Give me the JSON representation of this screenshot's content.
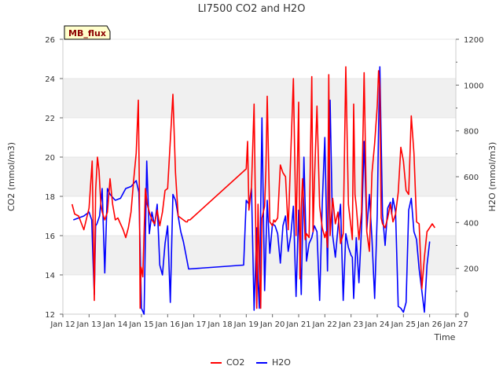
{
  "chart_data": {
    "type": "line",
    "title": "LI7500 CO2 and H2O",
    "xlabel": "Time",
    "ylabel_left": "CO2 (mmol/m3)",
    "ylabel_right": "H2O (mmol/m3)",
    "badge": "MB_flux",
    "x_range": [
      "2023-01-12",
      "2023-01-27"
    ],
    "ylim_left": [
      12,
      26
    ],
    "ylim_right": [
      0,
      1200
    ],
    "x_tick_labels": [
      "Jan 12",
      "Jan 13",
      "Jan 14",
      "Jan 15",
      "Jan 16",
      "Jan 17",
      "Jan 18",
      "Jan 19",
      "Jan 20",
      "Jan 21",
      "Jan 22",
      "Jan 23",
      "Jan 24",
      "Jan 25",
      "Jan 26",
      "Jan 27"
    ],
    "y_left_ticks": [
      12,
      14,
      16,
      18,
      20,
      22,
      24,
      26
    ],
    "y_right_ticks": [
      0,
      200,
      400,
      600,
      800,
      1000,
      1200
    ],
    "grid": "horizontal bands",
    "legend": "bottom-center",
    "colors": {
      "CO2": "#ff0000",
      "H2O": "#0000ff",
      "band": "#f0f0f0",
      "badge_fill": "#ffffcc",
      "badge_text": "#8b0000"
    },
    "series": [
      {
        "name": "CO2",
        "axis": "left",
        "x": [
          12.35,
          12.45,
          12.6,
          12.8,
          13.0,
          13.12,
          13.2,
          13.25,
          13.32,
          13.38,
          13.45,
          13.5,
          13.6,
          13.7,
          13.8,
          13.9,
          14.0,
          14.1,
          14.2,
          14.3,
          14.4,
          14.5,
          14.6,
          14.7,
          14.8,
          14.88,
          14.92,
          14.95,
          14.98,
          15.0,
          15.05,
          15.15,
          15.22,
          15.3,
          15.4,
          15.5,
          15.6,
          15.7,
          15.8,
          15.9,
          16.0,
          16.2,
          16.3,
          16.4,
          16.5,
          16.6,
          16.7,
          16.75,
          16.78,
          16.8,
          16.85,
          19.0,
          19.05,
          19.1,
          19.2,
          19.3,
          19.4,
          19.45,
          19.5,
          19.55,
          19.6,
          19.65,
          19.7,
          19.75,
          19.8,
          19.9,
          20.0,
          20.05,
          20.1,
          20.2,
          20.3,
          20.4,
          20.5,
          20.6,
          20.7,
          20.8,
          20.9,
          21.0,
          21.05,
          21.1,
          21.15,
          21.2,
          21.25,
          21.3,
          21.4,
          21.5,
          21.55,
          21.6,
          21.7,
          21.8,
          21.9,
          22.0,
          22.05,
          22.1,
          22.15,
          22.2,
          22.3,
          22.4,
          22.5,
          22.6,
          22.7,
          22.8,
          22.9,
          23.0,
          23.05,
          23.1,
          23.15,
          23.2,
          23.3,
          23.4,
          23.5,
          23.6,
          23.7,
          23.8,
          23.9,
          24.0,
          24.05,
          24.1,
          24.15,
          24.2,
          24.3,
          24.4,
          24.5,
          24.6,
          24.7,
          24.8,
          24.9,
          25.0,
          25.1,
          25.2,
          25.3,
          25.4,
          25.5,
          25.6,
          25.7,
          25.8,
          25.9,
          26.0,
          26.1,
          26.2
        ],
        "values": [
          17.6,
          17.1,
          17.0,
          16.3,
          17.4,
          19.8,
          12.7,
          18.3,
          20.0,
          19.3,
          17.6,
          17.2,
          16.8,
          17.2,
          18.9,
          17.6,
          16.8,
          16.9,
          16.6,
          16.3,
          15.9,
          16.4,
          17.2,
          18.8,
          20.2,
          22.9,
          18.5,
          12.3,
          14.4,
          14.3,
          13.9,
          18.4,
          17.6,
          17.2,
          16.8,
          16.6,
          17.3,
          16.5,
          17.2,
          18.3,
          18.4,
          23.2,
          19.2,
          17.0,
          16.9,
          16.8,
          16.7,
          16.7,
          16.8,
          16.8,
          16.8,
          19.4,
          20.8,
          17.3,
          18.5,
          22.7,
          12.3,
          17.6,
          14.4,
          12.3,
          16.9,
          17.2,
          17.5,
          19.3,
          23.1,
          16.7,
          16.5,
          16.8,
          16.7,
          16.9,
          19.6,
          19.2,
          19.0,
          16.3,
          20.2,
          24.0,
          16.0,
          22.8,
          13.8,
          17.4,
          18.9,
          17.3,
          15.8,
          16.1,
          15.9,
          24.1,
          16.2,
          18.7,
          22.6,
          17.5,
          16.4,
          15.9,
          16.2,
          15.4,
          24.2,
          16.0,
          17.9,
          16.6,
          17.2,
          15.6,
          16.1,
          24.6,
          17.6,
          16.4,
          15.8,
          22.7,
          18.1,
          17.5,
          15.8,
          17.2,
          24.3,
          16.2,
          15.2,
          19.2,
          20.7,
          22.6,
          24.4,
          23.5,
          16.9,
          16.6,
          16.4,
          16.9,
          17.6,
          16.7,
          17.1,
          18.2,
          20.5,
          19.8,
          18.3,
          18.1,
          22.1,
          20.2,
          16.7,
          16.6,
          13.3,
          14.9,
          16.2,
          16.4,
          16.6,
          16.4
        ]
      },
      {
        "name": "H2O",
        "axis": "left",
        "x": [
          12.4,
          12.6,
          12.8,
          13.0,
          13.1,
          13.15,
          13.2,
          13.25,
          13.3,
          13.4,
          13.5,
          13.6,
          13.7,
          13.8,
          14.0,
          14.2,
          14.4,
          14.6,
          14.8,
          14.9,
          15.0,
          15.1,
          15.2,
          15.3,
          15.4,
          15.5,
          15.6,
          15.7,
          15.8,
          15.9,
          16.0,
          16.1,
          16.2,
          16.3,
          16.4,
          16.45,
          16.5,
          16.6,
          16.7,
          16.8,
          18.9,
          19.0,
          19.1,
          19.2,
          19.3,
          19.4,
          19.45,
          19.5,
          19.6,
          19.7,
          19.8,
          19.9,
          20.0,
          20.1,
          20.2,
          20.3,
          20.4,
          20.5,
          20.6,
          20.7,
          20.8,
          20.9,
          21.0,
          21.1,
          21.2,
          21.3,
          21.4,
          21.5,
          21.6,
          21.7,
          21.8,
          21.9,
          22.0,
          22.1,
          22.2,
          22.3,
          22.4,
          22.5,
          22.6,
          22.7,
          22.8,
          22.9,
          23.0,
          23.05,
          23.1,
          23.2,
          23.3,
          23.4,
          23.5,
          23.6,
          23.7,
          23.8,
          23.9,
          24.0,
          24.05,
          24.1,
          24.2,
          24.3,
          24.4,
          24.5,
          24.55,
          24.6,
          24.7,
          24.8,
          24.9,
          25.0,
          25.1,
          25.2,
          25.3,
          25.4,
          25.5,
          25.6,
          25.7,
          25.8,
          25.9,
          26.0
        ],
        "values": [
          16.8,
          16.9,
          17.0,
          17.2,
          16.8,
          14.8,
          13.0,
          16.5,
          16.6,
          17.0,
          18.4,
          14.1,
          18.4,
          18.1,
          17.8,
          17.9,
          18.4,
          18.5,
          18.8,
          18.2,
          12.3,
          12.0,
          19.8,
          16.1,
          17.2,
          16.5,
          17.6,
          14.5,
          14.0,
          15.6,
          16.5,
          12.6,
          18.1,
          17.8,
          17.0,
          16.6,
          16.2,
          15.7,
          15.0,
          14.3,
          14.5,
          17.8,
          17.6,
          18.4,
          12.2,
          16.4,
          13.7,
          12.3,
          22.0,
          13.2,
          17.8,
          15.1,
          16.6,
          16.5,
          16.1,
          14.6,
          16.5,
          17.0,
          15.2,
          16.0,
          17.5,
          12.9,
          17.3,
          13.0,
          20.0,
          14.7,
          15.6,
          15.9,
          16.5,
          16.2,
          12.7,
          17.6,
          21.0,
          14.2,
          22.9,
          16.0,
          14.9,
          16.4,
          17.6,
          12.7,
          16.1,
          15.4,
          15.0,
          14.9,
          12.8,
          15.9,
          13.6,
          16.4,
          20.8,
          16.3,
          18.1,
          15.8,
          12.8,
          17.1,
          21.5,
          24.6,
          17.1,
          15.5,
          17.4,
          17.7,
          17.1,
          17.9,
          17.2,
          12.4,
          12.3,
          12.1,
          12.6,
          17.3,
          17.9,
          16.2,
          15.8,
          14.3,
          13.2,
          12.1,
          14.5,
          15.7
        ]
      }
    ]
  }
}
